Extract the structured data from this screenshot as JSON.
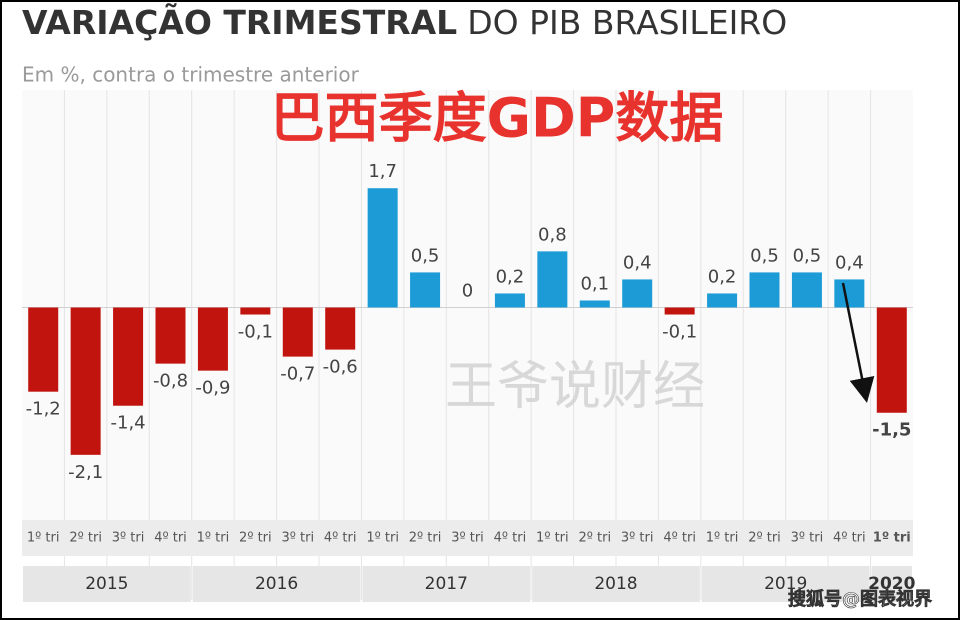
{
  "chart_data": {
    "type": "bar",
    "title_bold": "VARIAÇÃO TRIMESTRAL",
    "title_rest": "DO PIB BRASILEIRO",
    "subtitle": "Em %, contra o trimestre anterior",
    "overlay_title": "巴西季度GDP数据",
    "watermark": "王爷说财经",
    "credit": "搜狐号@图表视界",
    "categories": [
      "1º tri",
      "2º tri",
      "3º tri",
      "4º tri",
      "1º tri",
      "2º tri",
      "3º tri",
      "4º tri",
      "1º tri",
      "2º tri",
      "3º tri",
      "4º tri",
      "1º tri",
      "2º tri",
      "3º tri",
      "4º tri",
      "1º tri",
      "2º tri",
      "3º tri",
      "4º tri",
      "1º tri"
    ],
    "values": [
      -1.2,
      -2.1,
      -1.4,
      -0.8,
      -0.9,
      -0.1,
      -0.7,
      -0.6,
      1.7,
      0.5,
      0,
      0.2,
      0.8,
      0.1,
      0.4,
      -0.1,
      0.2,
      0.5,
      0.5,
      0.4,
      -1.5
    ],
    "value_labels": [
      "-1,2",
      "-2,1",
      "-1,4",
      "-0,8",
      "-0,9",
      "-0,1",
      "-0,7",
      "-0,6",
      "1,7",
      "0,5",
      "0",
      "0,2",
      "0,8",
      "0,1",
      "0,4",
      "-0,1",
      "0,2",
      "0,5",
      "0,5",
      "0,4",
      "-1,5"
    ],
    "groups": [
      {
        "label": "2015",
        "size": 4
      },
      {
        "label": "2016",
        "size": 4
      },
      {
        "label": "2017",
        "size": 4
      },
      {
        "label": "2018",
        "size": 4
      },
      {
        "label": "2019",
        "size": 4
      },
      {
        "label": "2020",
        "size": 1
      }
    ],
    "ylim": [
      -3.1,
      3.1
    ],
    "colors": {
      "positive": "#1c9bd7",
      "negative": "#c1140e"
    }
  }
}
